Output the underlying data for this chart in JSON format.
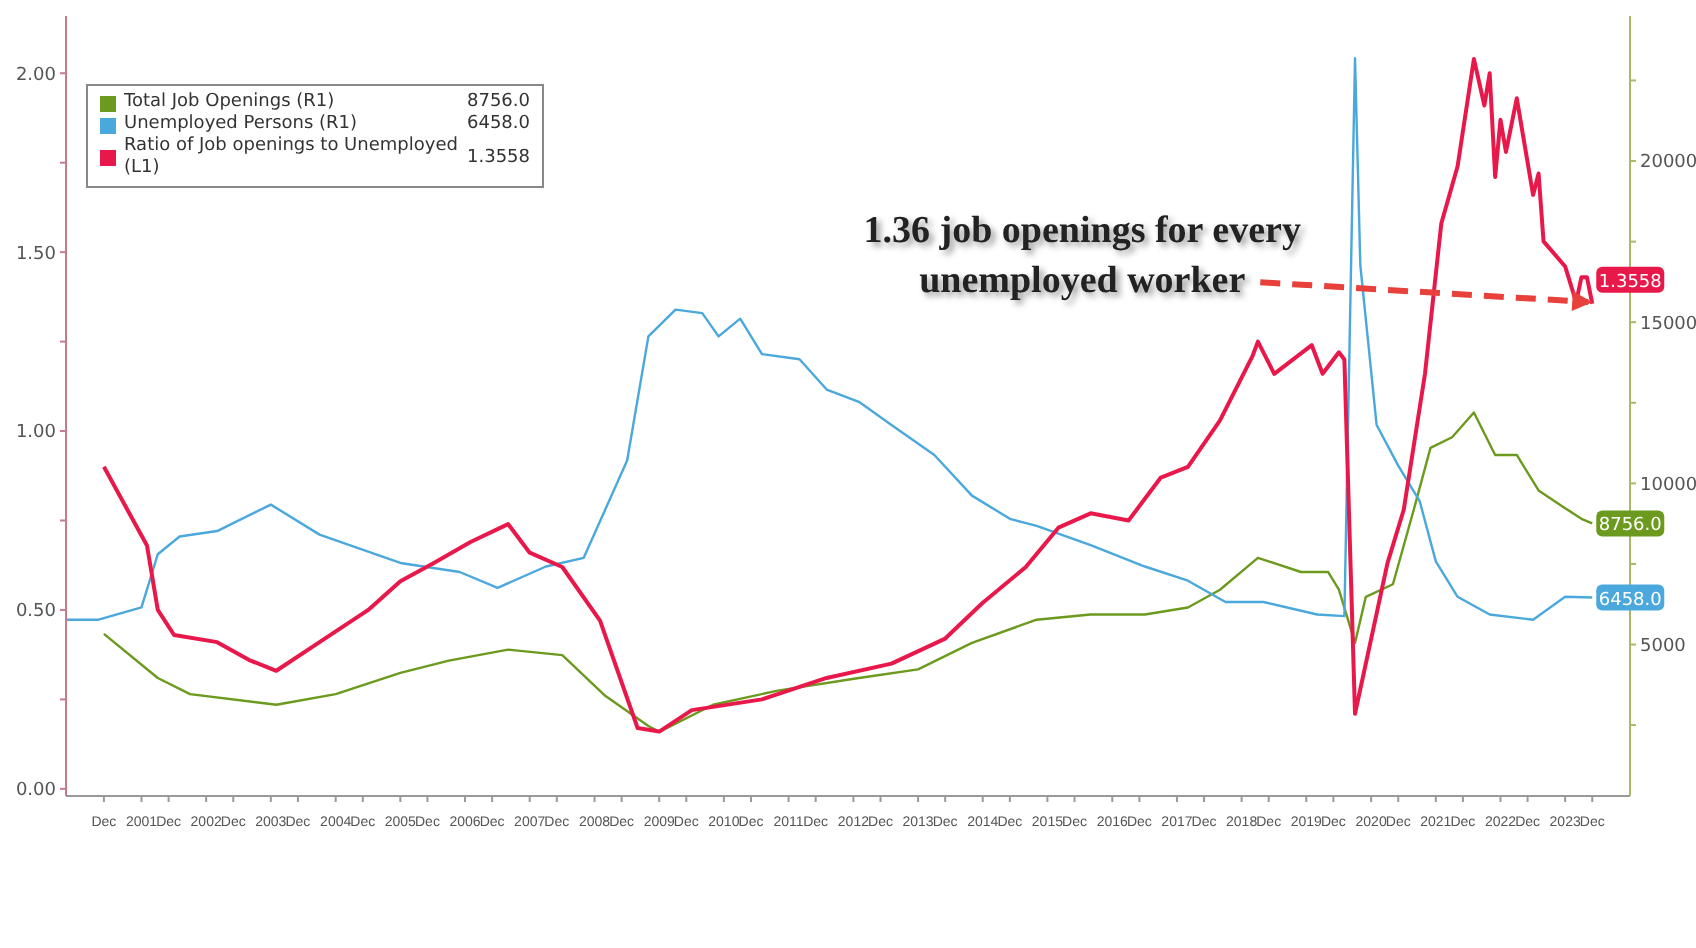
{
  "chart_data": {
    "type": "line",
    "legend": "top left",
    "marker": "none",
    "xlim": [
      "2000-05",
      "2024-07"
    ],
    "xticks": [
      {
        "value": "2000-12",
        "label": "Dec"
      },
      {
        "value": "2001-07",
        "label": "2001"
      },
      {
        "value": "2001-12",
        "label": "Dec"
      },
      {
        "value": "2002-07",
        "label": "2002"
      },
      {
        "value": "2002-12",
        "label": "Dec"
      },
      {
        "value": "2003-07",
        "label": "2003"
      },
      {
        "value": "2003-12",
        "label": "Dec"
      },
      {
        "value": "2004-07",
        "label": "2004"
      },
      {
        "value": "2004-12",
        "label": "Dec"
      },
      {
        "value": "2005-07",
        "label": "2005"
      },
      {
        "value": "2005-12",
        "label": "Dec"
      },
      {
        "value": "2006-07",
        "label": "2006"
      },
      {
        "value": "2006-12",
        "label": "Dec"
      },
      {
        "value": "2007-07",
        "label": "2007"
      },
      {
        "value": "2007-12",
        "label": "Dec"
      },
      {
        "value": "2008-07",
        "label": "2008"
      },
      {
        "value": "2008-12",
        "label": "Dec"
      },
      {
        "value": "2009-07",
        "label": "2009"
      },
      {
        "value": "2009-12",
        "label": "Dec"
      },
      {
        "value": "2010-07",
        "label": "2010"
      },
      {
        "value": "2010-12",
        "label": "Dec"
      },
      {
        "value": "2011-07",
        "label": "2011"
      },
      {
        "value": "2011-12",
        "label": "Dec"
      },
      {
        "value": "2012-07",
        "label": "2012"
      },
      {
        "value": "2012-12",
        "label": "Dec"
      },
      {
        "value": "2013-07",
        "label": "2013"
      },
      {
        "value": "2013-12",
        "label": "Dec"
      },
      {
        "value": "2014-07",
        "label": "2014"
      },
      {
        "value": "2014-12",
        "label": "Dec"
      },
      {
        "value": "2015-07",
        "label": "2015"
      },
      {
        "value": "2015-12",
        "label": "Dec"
      },
      {
        "value": "2016-07",
        "label": "2016"
      },
      {
        "value": "2016-12",
        "label": "Dec"
      },
      {
        "value": "2017-07",
        "label": "2017"
      },
      {
        "value": "2017-12",
        "label": "Dec"
      },
      {
        "value": "2018-07",
        "label": "2018"
      },
      {
        "value": "2018-12",
        "label": "Dec"
      },
      {
        "value": "2019-07",
        "label": "2019"
      },
      {
        "value": "2019-12",
        "label": "Dec"
      },
      {
        "value": "2020-07",
        "label": "2020"
      },
      {
        "value": "2020-12",
        "label": "Dec"
      },
      {
        "value": "2021-07",
        "label": "2021"
      },
      {
        "value": "2021-12",
        "label": "Dec"
      },
      {
        "value": "2022-07",
        "label": "2022"
      },
      {
        "value": "2022-12",
        "label": "Dec"
      },
      {
        "value": "2023-07",
        "label": "2023"
      },
      {
        "value": "2023-12",
        "label": "Dec"
      }
    ],
    "ylim": [
      -0.02,
      2.16
    ],
    "yticks": [
      {
        "value": 0,
        "label": "0.00"
      },
      {
        "value": 0.25,
        "label": null
      },
      {
        "value": 0.5,
        "label": "0.50"
      },
      {
        "value": 0.75,
        "label": null
      },
      {
        "value": 1,
        "label": "1.00"
      },
      {
        "value": 1.25,
        "label": null
      },
      {
        "value": 1.5,
        "label": "1.50"
      },
      {
        "value": 1.75,
        "label": null
      },
      {
        "value": 2,
        "label": "2.00"
      }
    ],
    "y2lim": [
      300,
      24500
    ],
    "y2ticks": [
      {
        "value": 2500,
        "label": null
      },
      5000,
      {
        "value": 7500,
        "label": null
      },
      10000,
      {
        "value": 12500,
        "label": null
      },
      15000,
      {
        "value": 17500,
        "label": null
      },
      20000,
      {
        "value": 22500,
        "label": null
      }
    ],
    "annotations": [
      {
        "text": "1.36 job openings for every unemployed worker",
        "x": "2023-12",
        "y": 1.36
      }
    ],
    "series": [
      {
        "name": "Total Job Openings (R1)",
        "color": "#6b9a1e",
        "axis": "y2",
        "x": [
          "2000-12",
          "2001-10",
          "2002-04",
          "2003-08",
          "2004-07",
          "2005-07",
          "2006-04",
          "2007-03",
          "2008-01",
          "2008-09",
          "2009-05",
          "2009-07",
          "2010-05",
          "2011-05",
          "2012-08",
          "2013-07",
          "2014-05",
          "2015-05",
          "2016-03",
          "2017-01",
          "2017-09",
          "2018-03",
          "2018-10",
          "2019-06",
          "2019-11",
          "2020-01",
          "2020-04",
          "2020-06",
          "2020-11",
          "2021-03",
          "2021-06",
          "2021-10",
          "2022-02",
          "2022-06",
          "2022-10",
          "2023-02",
          "2023-07",
          "2023-10",
          "2023-12"
        ],
        "values": [
          5330,
          3960,
          3460,
          3130,
          3460,
          4120,
          4500,
          4840,
          4670,
          3400,
          2470,
          2290,
          3130,
          3570,
          3960,
          4230,
          5050,
          5770,
          5930,
          5930,
          6150,
          6700,
          7690,
          7250,
          7250,
          6700,
          5050,
          6480,
          6870,
          9230,
          11100,
          11430,
          12200,
          10880,
          10880,
          9780,
          9230,
          8900,
          8756
        ],
        "value_labels": [
          null,
          null,
          null,
          null,
          null,
          null,
          null,
          null,
          null,
          null,
          null,
          null,
          null,
          null,
          null,
          null,
          null,
          null,
          null,
          null,
          null,
          null,
          null,
          null,
          null,
          null,
          null,
          null,
          null,
          null,
          null,
          null,
          null,
          null,
          null,
          null,
          null,
          null,
          "8756.0"
        ]
      },
      {
        "name": "Unemployed Persons (R1)",
        "color": "#4aa8dc",
        "axis": "y2",
        "x": [
          "2000-05",
          "2000-11",
          "2001-07",
          "2001-10",
          "2002-02",
          "2002-09",
          "2003-07",
          "2004-04",
          "2005-07",
          "2006-06",
          "2007-01",
          "2007-10",
          "2008-05",
          "2009-01",
          "2009-05",
          "2009-10",
          "2010-03",
          "2010-06",
          "2010-10",
          "2011-02",
          "2011-09",
          "2012-02",
          "2012-08",
          "2013-02",
          "2013-10",
          "2014-05",
          "2014-12",
          "2015-05",
          "2016-03",
          "2017-01",
          "2017-09",
          "2018-04",
          "2018-11",
          "2019-09",
          "2020-02",
          "2020-04",
          "2020-05",
          "2020-08",
          "2020-12",
          "2021-04",
          "2021-07",
          "2021-11",
          "2022-05",
          "2023-01",
          "2023-07",
          "2023-12"
        ],
        "values": [
          5770,
          5770,
          6150,
          7800,
          8350,
          8520,
          9340,
          8410,
          7530,
          7250,
          6760,
          7420,
          7690,
          10710,
          14560,
          15390,
          15280,
          14560,
          15110,
          14010,
          13850,
          12910,
          12530,
          11810,
          10880,
          9620,
          8900,
          8680,
          8080,
          7420,
          6980,
          6320,
          6320,
          5930,
          5880,
          23190,
          16760,
          11810,
          10550,
          9450,
          7580,
          6480,
          5930,
          5770,
          6480,
          6458
        ],
        "value_labels": [
          null,
          null,
          null,
          null,
          null,
          null,
          null,
          null,
          null,
          null,
          null,
          null,
          null,
          null,
          null,
          null,
          null,
          null,
          null,
          null,
          null,
          null,
          null,
          null,
          null,
          null,
          null,
          null,
          null,
          null,
          null,
          null,
          null,
          null,
          null,
          null,
          null,
          null,
          null,
          null,
          null,
          null,
          null,
          null,
          null,
          "6458.0"
        ]
      },
      {
        "name": "Ratio of Job openings to Unemployed (L1)",
        "color": "#e8194a",
        "axis": "y",
        "x": [
          "2000-12",
          "2001-08",
          "2001-10",
          "2002-01",
          "2002-09",
          "2003-03",
          "2003-08",
          "2004-04",
          "2005-01",
          "2005-07",
          "2006-01",
          "2006-08",
          "2007-03",
          "2007-07",
          "2008-01",
          "2008-08",
          "2009-03",
          "2009-07",
          "2010-01",
          "2011-02",
          "2012-02",
          "2013-02",
          "2013-12",
          "2014-07",
          "2015-03",
          "2015-09",
          "2016-03",
          "2016-10",
          "2017-04",
          "2017-09",
          "2018-03",
          "2018-09",
          "2018-10",
          "2019-01",
          "2019-08",
          "2019-10",
          "2020-01",
          "2020-02",
          "2020-04",
          "2020-10",
          "2021-01",
          "2021-05",
          "2021-08",
          "2021-11",
          "2022-02",
          "2022-04",
          "2022-05",
          "2022-06",
          "2022-07",
          "2022-08",
          "2022-10",
          "2023-01",
          "2023-02",
          "2023-03",
          "2023-07",
          "2023-09",
          "2023-10",
          "2023-11",
          "2023-12"
        ],
        "values": [
          0.9,
          0.68,
          0.5,
          0.43,
          0.41,
          0.36,
          0.33,
          0.41,
          0.5,
          0.58,
          0.63,
          0.69,
          0.74,
          0.66,
          0.62,
          0.47,
          0.17,
          0.16,
          0.22,
          0.25,
          0.31,
          0.35,
          0.42,
          0.52,
          0.62,
          0.73,
          0.77,
          0.75,
          0.87,
          0.9,
          1.03,
          1.21,
          1.25,
          1.16,
          1.24,
          1.16,
          1.22,
          1.2,
          0.21,
          0.63,
          0.78,
          1.16,
          1.58,
          1.74,
          2.04,
          1.91,
          2.0,
          1.71,
          1.87,
          1.78,
          1.93,
          1.66,
          1.72,
          1.53,
          1.46,
          1.36,
          1.43,
          1.43,
          1.3558
        ],
        "value_labels": [
          null,
          null,
          null,
          null,
          null,
          null,
          null,
          null,
          null,
          null,
          null,
          null,
          null,
          null,
          null,
          null,
          null,
          null,
          null,
          null,
          null,
          null,
          null,
          null,
          null,
          null,
          null,
          null,
          null,
          null,
          null,
          null,
          null,
          null,
          null,
          null,
          null,
          null,
          null,
          null,
          null,
          null,
          null,
          null,
          null,
          null,
          null,
          null,
          null,
          null,
          null,
          null,
          null,
          null,
          null,
          null,
          null,
          null,
          "1.3558"
        ]
      }
    ]
  }
}
